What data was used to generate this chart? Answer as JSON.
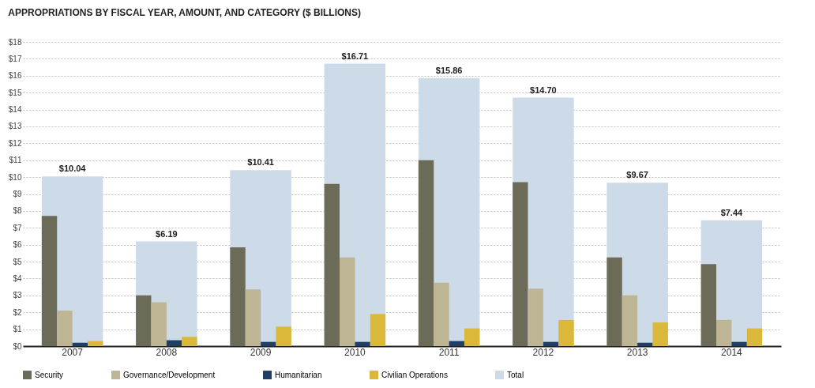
{
  "chart_data": {
    "type": "bar",
    "title": "APPROPRIATIONS BY FISCAL YEAR, AMOUNT, AND CATEGORY ($ BILLIONS)",
    "categories": [
      "2007",
      "2008",
      "2009",
      "2010",
      "2011",
      "2012",
      "2013",
      "2014"
    ],
    "series": [
      {
        "name": "Security",
        "color": "#6b6b58",
        "values": [
          7.7,
          3.0,
          5.85,
          9.6,
          11.0,
          9.7,
          5.25,
          4.85
        ]
      },
      {
        "name": "Governance/Development",
        "color": "#bdb594",
        "values": [
          2.1,
          2.6,
          3.35,
          5.25,
          3.75,
          3.4,
          3.0,
          1.55
        ]
      },
      {
        "name": "Humanitarian",
        "color": "#1f3f66",
        "values": [
          0.2,
          0.35,
          0.25,
          0.25,
          0.3,
          0.25,
          0.2,
          0.25
        ]
      },
      {
        "name": "Civilian Operations",
        "color": "#d9b83a",
        "values": [
          0.3,
          0.55,
          1.15,
          1.9,
          1.05,
          1.55,
          1.4,
          1.05
        ]
      },
      {
        "name": "Total",
        "color": "#cddbe8",
        "values": [
          10.04,
          6.19,
          10.41,
          16.71,
          15.86,
          14.7,
          9.67,
          7.44
        ],
        "value_labels": [
          "$10.04",
          "$6.19",
          "$10.41",
          "$16.71",
          "$15.86",
          "$14.70",
          "$9.67",
          "$7.44"
        ]
      }
    ],
    "ylim": [
      0,
      18
    ],
    "yticks": [
      {
        "value": 0,
        "label": "$0"
      },
      {
        "value": 1,
        "label": "$1"
      },
      {
        "value": 2,
        "label": "$2"
      },
      {
        "value": 3,
        "label": "$3"
      },
      {
        "value": 4,
        "label": "$4"
      },
      {
        "value": 5,
        "label": "$5"
      },
      {
        "value": 6,
        "label": "$6"
      },
      {
        "value": 7,
        "label": "$7"
      },
      {
        "value": 8,
        "label": "$8"
      },
      {
        "value": 9,
        "label": "$9"
      },
      {
        "value": 10,
        "label": "$10"
      },
      {
        "value": 11,
        "label": "$11"
      },
      {
        "value": 12,
        "label": "$12"
      },
      {
        "value": 13,
        "label": "$13"
      },
      {
        "value": 14,
        "label": "$14"
      },
      {
        "value": 15,
        "label": "$15"
      },
      {
        "value": 16,
        "label": "$16"
      },
      {
        "value": 17,
        "label": "$17"
      },
      {
        "value": 18,
        "label": "$18"
      }
    ],
    "grid": "y",
    "legend": "bottom"
  }
}
